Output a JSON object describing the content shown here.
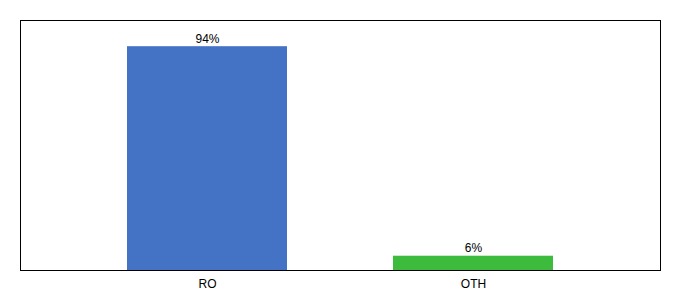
{
  "chart_data": {
    "type": "bar",
    "categories": [
      "RO",
      "OTH"
    ],
    "values": [
      94,
      6
    ],
    "value_labels": [
      "94%",
      "6%"
    ],
    "colors": [
      "#4472c4",
      "#3dbb3d"
    ],
    "ylim": [
      0,
      105
    ],
    "data_labels": true,
    "tick_labels": "x"
  }
}
